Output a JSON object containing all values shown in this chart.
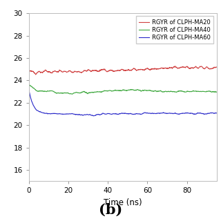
{
  "title": "",
  "xlabel": "Time (ns)",
  "ylabel": "",
  "label_b": "(b)",
  "legend_entries": [
    "RGYR of CLPH-MA20",
    "RGYR of CLPH-MA40",
    "RGYR of CLPH-MA60"
  ],
  "colors": [
    "#d04040",
    "#40a840",
    "#2828c8"
  ],
  "ylim": [
    15,
    30
  ],
  "xlim": [
    0,
    95
  ],
  "yticks": [
    16,
    18,
    20,
    22,
    24,
    26,
    28,
    30
  ],
  "xticks": [
    0,
    20,
    40,
    60,
    80
  ],
  "time_points": 1000,
  "ma20_start": 24.75,
  "ma20_end": 25.05,
  "ma40_start_high": 23.7,
  "ma40_drop_to": 23.0,
  "ma60_start_high": 23.2,
  "ma60_drop_to": 21.15,
  "ma60_final": 21.05,
  "background_color": "#ffffff",
  "linewidth": 0.8,
  "legend_fontsize": 6.0,
  "tick_labelsize": 7.5,
  "xlabel_fontsize": 8.5,
  "label_b_fontsize": 15
}
